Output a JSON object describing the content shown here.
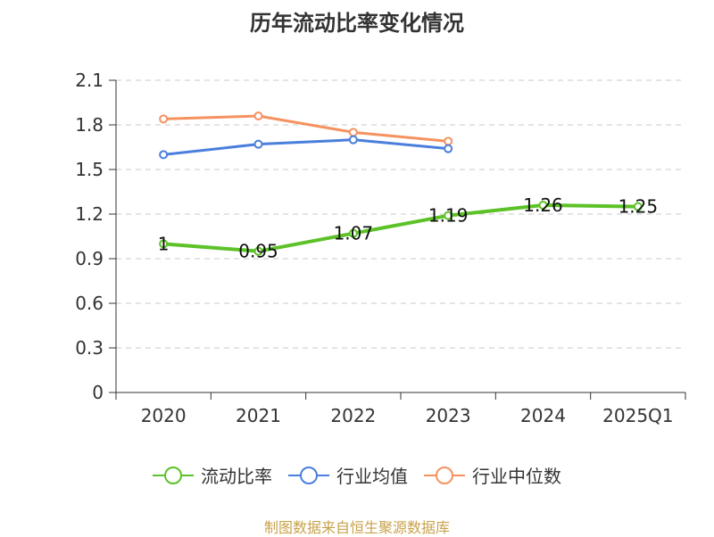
{
  "title": "历年流动比率变化情况",
  "source": "制图数据来自恒生聚源数据库",
  "chart_data": {
    "type": "line",
    "title": "历年流动比率变化情况",
    "categories": [
      "2020",
      "2021",
      "2022",
      "2023",
      "2024",
      "2025Q1"
    ],
    "ylim": [
      0,
      2.1
    ],
    "yticks": [
      "0",
      "0.3",
      "0.6",
      "0.9",
      "1.2",
      "1.5",
      "1.8",
      "2.1"
    ],
    "grid": "horizontal dashed",
    "legend_position": "bottom",
    "series": [
      {
        "name": "流动比率",
        "color": "#5cc228",
        "values": [
          1,
          0.95,
          1.07,
          1.19,
          1.26,
          1.25
        ],
        "labels": [
          "1",
          "0.95",
          "1.07",
          "1.19",
          "1.26",
          "1.25"
        ],
        "width": 4
      },
      {
        "name": "行业均值",
        "color": "#4a7fdc",
        "values": [
          1.6,
          1.67,
          1.7,
          1.64,
          null,
          null
        ],
        "width": 3
      },
      {
        "name": "行业中位数",
        "color": "#f59260",
        "values": [
          1.84,
          1.86,
          1.75,
          1.69,
          null,
          null
        ],
        "width": 3
      }
    ]
  }
}
